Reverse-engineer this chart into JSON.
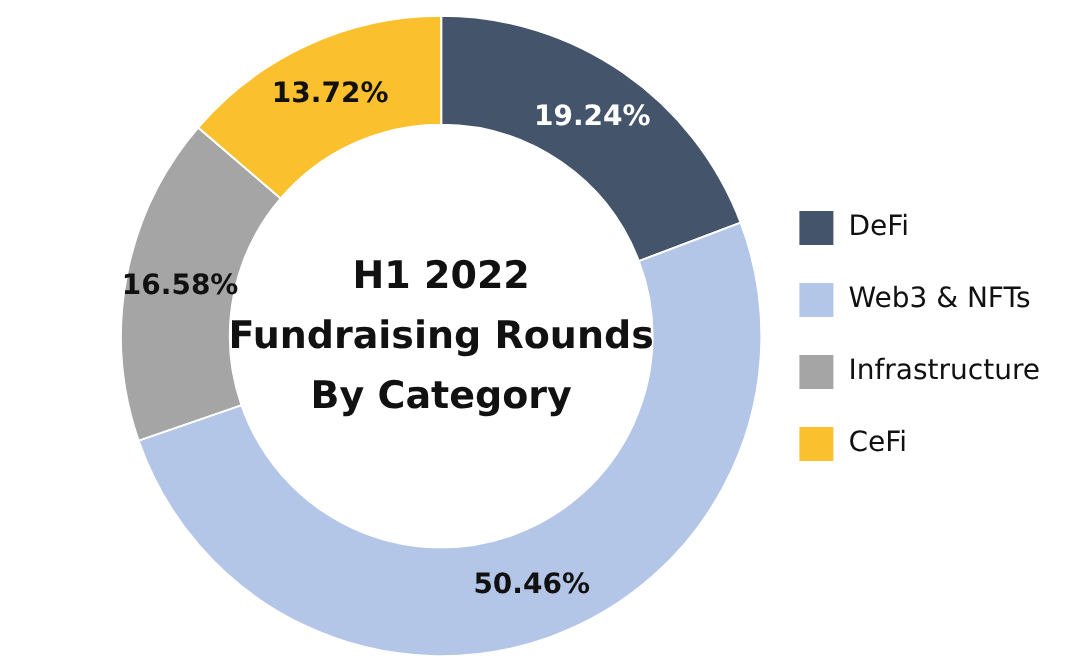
{
  "chart_data": {
    "type": "donut",
    "title": "H1 2022\nFundraising Rounds\nBy Category",
    "categories": [
      "DeFi",
      "Web3 & NFTs",
      "Infrastructure",
      "CeFi"
    ],
    "values": [
      19.24,
      50.46,
      16.58,
      13.72
    ],
    "colors": [
      "#44546a",
      "#b4c6e7",
      "#a5a5a5",
      "#fbc02d"
    ],
    "value_labels": [
      "19.24%",
      "50.46%",
      "16.58%",
      "13.72%"
    ],
    "legend": "right"
  }
}
